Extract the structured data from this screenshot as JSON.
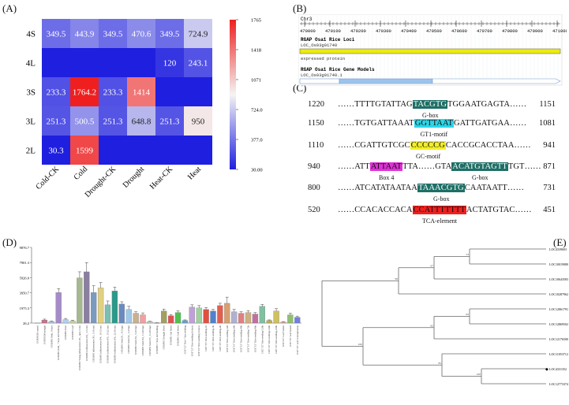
{
  "panel_labels": {
    "A": "(A)",
    "B": "(B)",
    "C": "(C)",
    "D": "(D)",
    "E": "(E)"
  },
  "chart_data": [
    {
      "type": "heatmap",
      "panel": "A",
      "rows": [
        "4S",
        "4L",
        "3S",
        "3L",
        "2L"
      ],
      "columns": [
        "Cold-CK",
        "Cold",
        "Drought-CK",
        "Drought",
        "Heat-CK",
        "Heat"
      ],
      "values": [
        [
          349.5,
          443.9,
          349.5,
          470.6,
          349.5,
          724.9
        ],
        [
          null,
          null,
          null,
          null,
          120,
          243.1
        ],
        [
          233.3,
          1764.2,
          233.3,
          1414,
          null,
          null
        ],
        [
          251.3,
          500.5,
          251.3,
          648.8,
          251.3,
          950
        ],
        [
          30.3,
          1599,
          null,
          null,
          null,
          null
        ]
      ],
      "value_labels": [
        [
          "349.5",
          "443.9",
          "349.5",
          "470.6",
          "349.5",
          "724.9"
        ],
        [
          "",
          "",
          "",
          "",
          "120",
          "243.1"
        ],
        [
          "233.3",
          "1764.2",
          "233.3",
          "1414",
          "",
          ""
        ],
        [
          "251.3",
          "500.5",
          "251.3",
          "648.8",
          "251.3",
          "950"
        ],
        [
          "30.3",
          "1599",
          "",
          "",
          "",
          ""
        ]
      ],
      "colorbar": {
        "min": 30,
        "max": 1765,
        "ticks": [
          "1765",
          "1418",
          "1071",
          "724.0",
          "377.0",
          "30.00"
        ],
        "colors": {
          "low": "#1f1fe0",
          "mid": "#f4f4f4",
          "high": "#ef1f1f"
        }
      }
    },
    {
      "type": "bar",
      "panel": "D",
      "ytick_labels": [
        "9876.7",
        "7901.3",
        "5926.0",
        "3950.7",
        "1975.3",
        "26.2"
      ],
      "ylim": [
        26.2,
        9876.7
      ],
      "values": [
        40,
        420,
        230,
        4000,
        480,
        300,
        5900,
        6700,
        4000,
        4600,
        2400,
        4200,
        2500,
        1800,
        1300,
        1100,
        200,
        50,
        1600,
        970,
        1400,
        360,
        2100,
        2000,
        1800,
        1600,
        2300,
        2600,
        1500,
        1300,
        1400,
        1200,
        2200,
        360,
        1600,
        160,
        1100,
        780
      ],
      "errors": [
        0,
        120,
        60,
        500,
        150,
        100,
        800,
        1200,
        900,
        700,
        500,
        500,
        300,
        400,
        200,
        250,
        60,
        20,
        250,
        150,
        200,
        80,
        300,
        300,
        250,
        200,
        300,
        800,
        300,
        200,
        250,
        200,
        250,
        80,
        300,
        40,
        200,
        150
      ],
      "colors": [
        "#c0c0c0",
        "#c7708a",
        "#a5c8e8",
        "#a58cc8",
        "#b0d0f0",
        "#c8d8a0",
        "#a6b890",
        "#8a7fa0",
        "#7a9ac0",
        "#e0d080",
        "#7ac0b0",
        "#2a9a8a",
        "#6a8ac0",
        "#a0c8e8",
        "#c8b090",
        "#f0a0a0",
        "#c0d0c0",
        "#6a6a6a",
        "#a0a060",
        "#e05050",
        "#50c050",
        "#60a0d8",
        "#c0a0d8",
        "#a0d0a0",
        "#e05040",
        "#5080d0",
        "#e06050",
        "#d8a070",
        "#b0b0d0",
        "#e08080",
        "#d0b080",
        "#c070a0",
        "#80c0a0",
        "#c0b040",
        "#d0c060",
        "#f0b0b0",
        "#90c070",
        "#7080e0"
      ],
      "categories": [
        "OSIRNC00 control",
        "OSIRNC00 drought",
        "GSE6893 Anth_ 0 days",
        "GSE6893 Anth_ 7 days old Seedling",
        "GSE6893 Root",
        "GSE6893 Leaf",
        "GSE6893 Young inflorescence (P1_ upto 3 cm)",
        "GSE6893 inflorescence (P2_ 3-5 cm)",
        "GSE6893 inflorescence (P3_ 5-10 cm)",
        "GSE6893 inflorescence (P4_ 10-15 cm)",
        "GSE6893 inflorescence (P5_ 15-22 cm)",
        "GSE6893 inflorescence (P6_ 22-30 cm)",
        "GSE6893 Seed (S1_ 0-2 dap)",
        "GSE6893 Seed (S2_ 3-4 dap)",
        "GSE6893 Seed (S3_ 5-10 dap)",
        "GSE6893 Seed (S4_ 11-20 dap)",
        "GSE6893 Seed (S5_ 21-29 dap)",
        "GSE6893 7 days old Seedling",
        "GSE6901 Drought Stress",
        "GSE6901 Salt Stress",
        "GSE6901 Cold Stress",
        "GSE7157 Rice 7-day seedling",
        "GSE7157 Rice seedling (6 days)",
        "GSE7157 Rice seedling (4 days)",
        "GSE7157 Rice seedling-1h",
        "GSE7157 Rice seedling-3h",
        "GSE7157 Rice seedling-6h",
        "GSE7157 Rice seedling-12h",
        "GSE7157 Rice seedling-24h",
        "GSE7157 Rice seedling-48h",
        "GSE7157 Rice seedling-72h",
        "GSE7157 Rice seedling-96h",
        "GSE7157 Rice seedling-120h",
        "GSE7157 Rice seedling-144h",
        "GSE7157 Rice seedling-168h",
        "GSE7157 Leaf control",
        "GSE7157 Leaf treated",
        "GSE7157 Leaf overexpression"
      ]
    }
  ],
  "browser": {
    "chrom": "Chr3",
    "axis_ticks": [
      "470000",
      "470100",
      "470200",
      "470300",
      "470400",
      "470500",
      "470600",
      "470700",
      "470800",
      "470900",
      "471000"
    ],
    "track1_title": "RGAP Osa1 Rice Loci",
    "track1_locus": "LOC_Os03g01740",
    "track1_note": "expressed protein",
    "track2_title": "RGAP Osa1 Rice Gene Models",
    "track2_model": "LOC_Os03g01740.1"
  },
  "sequences": [
    {
      "start": "1220",
      "pre": "……TTTTGTATTAG",
      "motif": "TACGTG",
      "post": "TGGAATGAGTA……",
      "end": "1151",
      "label": "G-box",
      "color": "#1e6f66",
      "fg": "#ffffff"
    },
    {
      "start": "1150",
      "pre": "……TGTGATTAAAT",
      "motif": "GGTTAAT",
      "post": "GATTGATGAA……",
      "end": "1081",
      "label": "GT1-motif",
      "color": "#2bd6e8",
      "fg": "#111111"
    },
    {
      "start": "1110",
      "pre": "……CGATTGTCGC",
      "motif": "CCCCCG",
      "post": "CACCGCACCTAA……",
      "end": "941",
      "label": "GC-motif",
      "color": "#f2ee28",
      "fg": "#111111"
    },
    {
      "start": "940",
      "pre": "……ATT",
      "motif": "ATTAAT",
      "post": "TTA……GTA",
      "motif2": "ACATGTAGTT",
      "post2": "TGT……",
      "end": "871",
      "label": "Box 4",
      "label2": "G-box",
      "color": "#e030d8",
      "color2": "#1e6f66",
      "fg": "#111111",
      "fg2": "#ffffff"
    },
    {
      "start": "800",
      "pre": "……ATCATATAATAA",
      "motif": "TAAACGTG",
      "post": "CAATAATT……",
      "end": "731",
      "label": "G-box",
      "color": "#1e6f66",
      "fg": "#ffffff"
    },
    {
      "start": "520",
      "pre": "……CCACACCACA",
      "motif": "CCATTTTTTT",
      "post": "ACTATGTAC……",
      "end": "451",
      "label": "TCA-element",
      "color": "#ee2020",
      "fg": "#111111"
    }
  ],
  "tree": {
    "taxa": [
      "LOC4339603",
      "LOC100190802",
      "LOC106435839",
      "LOC102879629",
      "LOC128617919",
      "LOC128695028",
      "LOC121765009",
      "LOC110537127",
      "LOC4331352",
      "LOC127733749"
    ],
    "bootstrap": [
      "53",
      "97",
      "98",
      "85",
      "82",
      "100",
      "85",
      "100"
    ],
    "highlight_marker": "◆"
  }
}
